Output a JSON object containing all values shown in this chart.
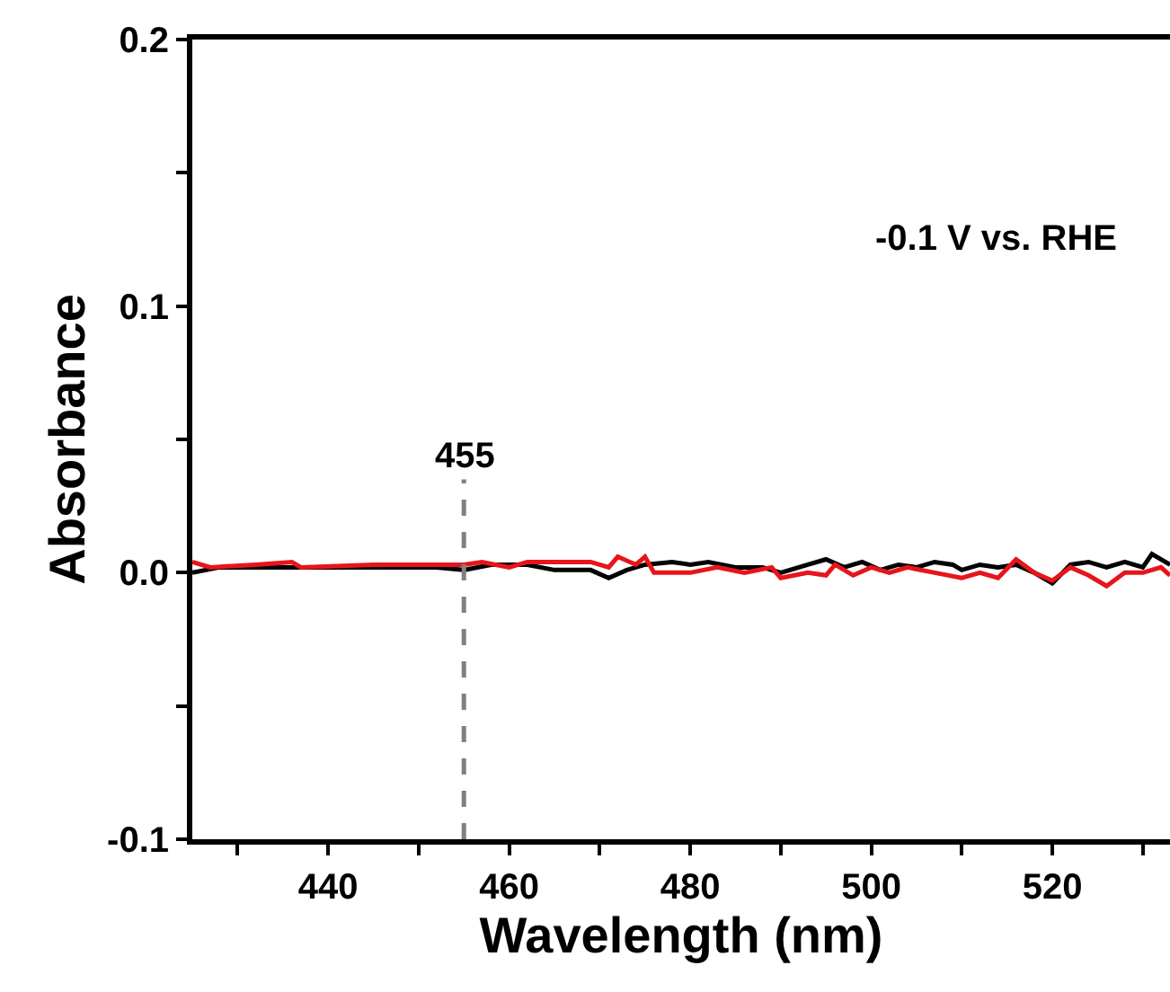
{
  "chart_data": {
    "type": "line",
    "xlabel": "Wavelength (nm)",
    "ylabel": "Absorbance",
    "xlim": [
      425,
      533
    ],
    "xticks": [
      {
        "value": 430,
        "label": null
      },
      440,
      {
        "value": 450,
        "label": null
      },
      460,
      {
        "value": 470,
        "label": null
      },
      480,
      {
        "value": 490,
        "label": null
      },
      500,
      {
        "value": 510,
        "label": null
      },
      520,
      {
        "value": 530,
        "label": null
      }
    ],
    "ylim": [
      -0.1,
      0.2
    ],
    "yticks": [
      {
        "value": -0.1,
        "label": "-0.1"
      },
      {
        "value": -0.05,
        "label": null
      },
      {
        "value": 0,
        "label": "0.0"
      },
      {
        "value": 0.05,
        "label": null
      },
      0.1,
      {
        "value": 0.15,
        "label": null
      },
      0.2
    ],
    "marker": "none",
    "line_style": "solid",
    "series": [
      {
        "color": "#000000",
        "x": [
          425,
          428,
          435,
          445,
          452,
          455,
          458,
          462,
          465,
          469,
          471,
          473,
          475,
          478,
          480,
          482,
          485,
          488,
          490,
          493,
          495,
          497,
          499,
          501,
          503,
          505,
          507,
          509,
          510,
          512,
          514,
          516,
          518,
          520,
          522,
          524,
          526,
          528,
          530,
          531,
          533
        ],
        "values": [
          0.0,
          0.002,
          0.002,
          0.002,
          0.002,
          0.001,
          0.003,
          0.003,
          0.001,
          0.001,
          -0.002,
          0.001,
          0.003,
          0.004,
          0.003,
          0.004,
          0.002,
          0.002,
          0.0,
          0.003,
          0.005,
          0.002,
          0.004,
          0.001,
          0.003,
          0.002,
          0.004,
          0.003,
          0.001,
          0.003,
          0.002,
          0.003,
          0.0,
          -0.004,
          0.003,
          0.004,
          0.002,
          0.004,
          0.002,
          0.007,
          0.003
        ]
      },
      {
        "color": "#e8141b",
        "x": [
          425,
          427,
          432,
          436,
          437,
          445,
          452,
          455,
          457,
          460,
          462,
          465,
          469,
          471,
          472,
          474,
          475,
          476,
          480,
          483,
          486,
          489,
          490,
          493,
          495,
          496,
          498,
          500,
          502,
          504,
          507,
          510,
          512,
          514,
          516,
          518,
          520,
          522,
          524,
          526,
          528,
          530,
          532,
          533
        ],
        "values": [
          0.004,
          0.002,
          0.003,
          0.004,
          0.002,
          0.003,
          0.003,
          0.003,
          0.004,
          0.002,
          0.004,
          0.004,
          0.004,
          0.002,
          0.006,
          0.003,
          0.006,
          0.0,
          0.0,
          0.002,
          0.0,
          0.002,
          -0.002,
          0.0,
          -0.001,
          0.003,
          -0.001,
          0.002,
          0.0,
          0.002,
          0.0,
          -0.002,
          0.0,
          -0.002,
          0.005,
          0.0,
          -0.003,
          0.002,
          -0.001,
          -0.005,
          0.0,
          0.0,
          0.002,
          -0.001
        ]
      }
    ],
    "ref_lines": [
      {
        "axis": "x",
        "value": 455,
        "label": "455",
        "color": "#808080",
        "line_style": "dashed"
      }
    ],
    "annotations": [
      "-0.1 V vs. RHE"
    ]
  }
}
